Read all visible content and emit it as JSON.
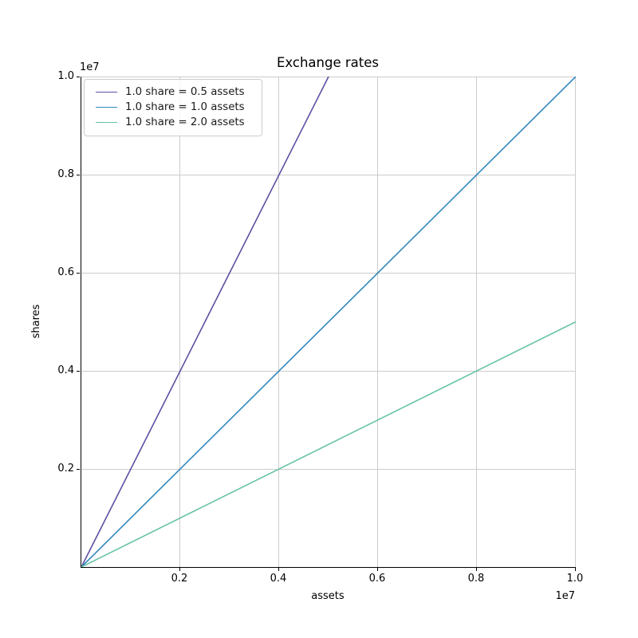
{
  "chart_data": {
    "type": "line",
    "title": "Exchange rates",
    "xlabel": "assets",
    "ylabel": "shares",
    "x_offset_text": "1e7",
    "y_offset_text": "1e7",
    "xlim": [
      0,
      10000000
    ],
    "ylim": [
      0,
      10000000
    ],
    "grid": true,
    "legend_position": "upper left",
    "xticks": {
      "values": [
        2000000,
        4000000,
        6000000,
        8000000,
        10000000
      ],
      "labels": [
        "0.2",
        "0.4",
        "0.6",
        "0.8",
        "1.0"
      ]
    },
    "yticks": {
      "values": [
        2000000,
        4000000,
        6000000,
        8000000,
        10000000
      ],
      "labels": [
        "0.2",
        "0.4",
        "0.6",
        "0.8",
        "1.0"
      ]
    },
    "series": [
      {
        "name": "1.0 share = 0.5 assets",
        "color": "#5e4fa2",
        "points": [
          [
            0,
            0
          ],
          [
            10000000,
            20000000
          ]
        ]
      },
      {
        "name": "1.0 share = 1.0 assets",
        "color": "#3288bd",
        "points": [
          [
            0,
            0
          ],
          [
            10000000,
            10000000
          ]
        ]
      },
      {
        "name": "1.0 share = 2.0 assets",
        "color": "#66c2a5",
        "points": [
          [
            0,
            0
          ],
          [
            10000000,
            5000000
          ]
        ]
      }
    ],
    "colors": {
      "grid": "#cccccc",
      "spine": "#000000",
      "text": "#000000"
    }
  }
}
